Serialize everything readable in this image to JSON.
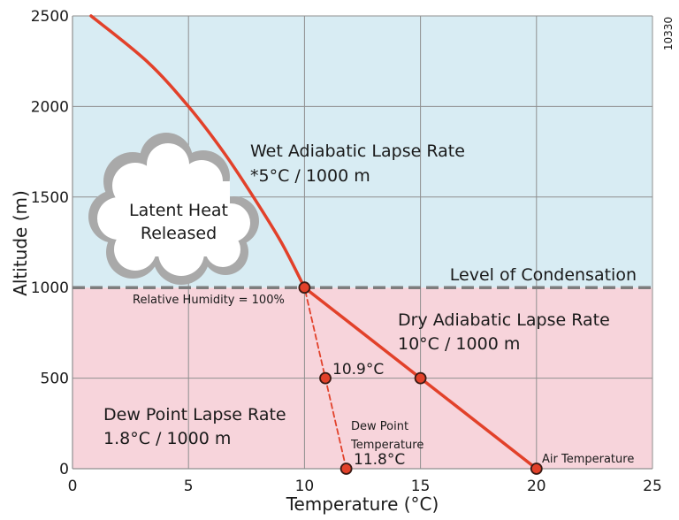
{
  "chart_data": {
    "type": "line",
    "xlabel": "Temperature (°C)",
    "ylabel": "Altitude (m)",
    "xlim": [
      0,
      25
    ],
    "ylim": [
      0,
      2500
    ],
    "x_ticks": [
      "0",
      "5",
      "10",
      "15",
      "20",
      "25"
    ],
    "y_ticks": [
      "0",
      "500",
      "1000",
      "1500",
      "2000",
      "2500"
    ],
    "grid": true,
    "background_bands": [
      {
        "from": 0,
        "to": 1000,
        "color": "#f7d4db"
      },
      {
        "from": 1000,
        "to": 2500,
        "color": "#d8ecf3"
      }
    ],
    "series": [
      {
        "points": [
          [
            20,
            0
          ],
          [
            15,
            500
          ],
          [
            10,
            1000
          ]
        ],
        "style": "solid",
        "color": "#e2412a"
      },
      {
        "points": [
          [
            10,
            1000
          ],
          [
            9.0,
            1250
          ],
          [
            7.8,
            1500
          ],
          [
            6.5,
            1750
          ],
          [
            5,
            2000
          ],
          [
            3.2,
            2250
          ],
          [
            0.8,
            2500
          ]
        ],
        "style": "solid-curve",
        "color": "#e2412a"
      },
      {
        "points": [
          [
            11.8,
            0
          ],
          [
            10.9,
            500
          ],
          [
            10,
            1000
          ]
        ],
        "style": "dashed",
        "color": "#e2412a"
      }
    ],
    "markers": [
      [
        10,
        1000
      ],
      [
        10.9,
        500
      ],
      [
        15,
        500
      ],
      [
        20,
        0
      ],
      [
        11.8,
        0
      ]
    ],
    "condensation_level": 1000,
    "annotations": {
      "wet_title": "Wet Adiabatic Lapse Rate",
      "wet_rate": "*5°C / 1000 m",
      "cloud_line1": "Latent Heat",
      "cloud_line2": "Released",
      "condensation": "Level of Condensation",
      "humidity": "Relative Humidity = 100%",
      "dry_title": "Dry Adiabatic Lapse Rate",
      "dry_rate": "10°C / 1000 m",
      "dew_title": "Dew Point Lapse Rate",
      "dew_rate": "1.8°C / 1000 m",
      "temp_109": "10.9°C",
      "temp_118": "11.8°C",
      "dew_point_line1": "Dew Point",
      "dew_point_line2": "Temperature",
      "air_temp": "Air Temperature"
    },
    "figure_code": "10330"
  }
}
